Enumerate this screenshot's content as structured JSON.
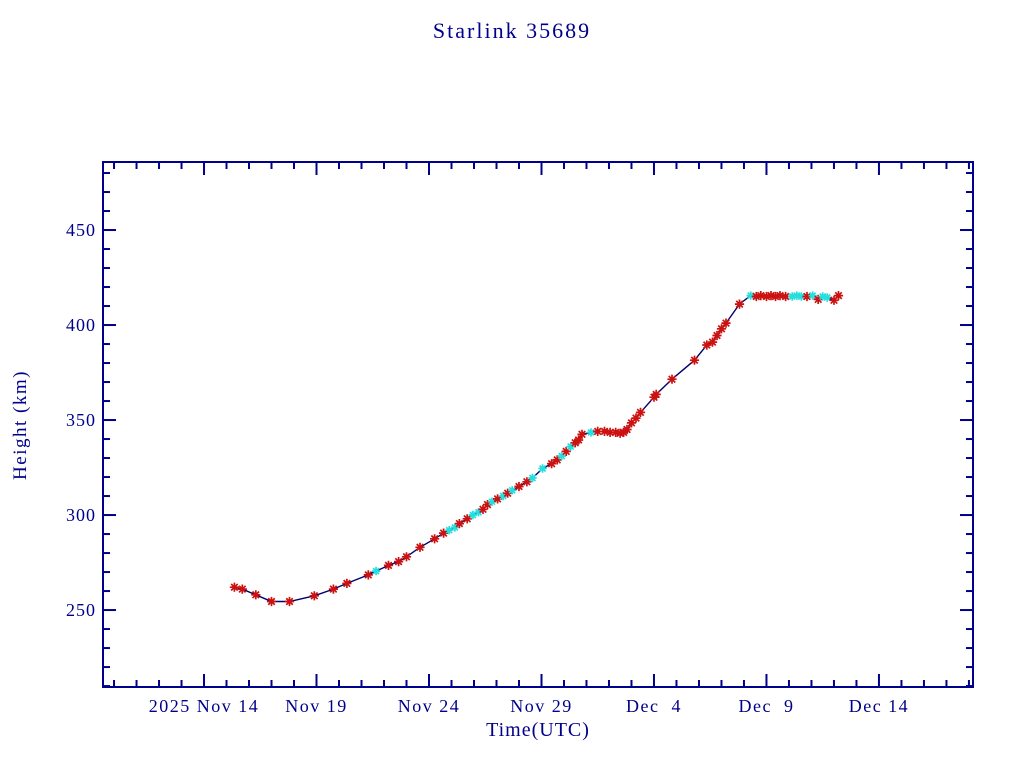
{
  "page": {
    "background_color": "#ffffff"
  },
  "chart_data": {
    "type": "line",
    "title": "Starlink 35689",
    "xlabel": "Time(UTC)",
    "ylabel": "Height (km)",
    "axis_color": "#00008b",
    "line_color": "#000070",
    "marker_colors": {
      "r": "#cc1111",
      "c": "#27dede"
    },
    "legend_position": "none",
    "grid": "off",
    "point_format": [
      "days_since_2025_Nov_14_00UTC",
      "height_km",
      "marker_color_key (r=red asterisk, c=cyan asterisk)"
    ],
    "x_range_days": [
      -4.49,
      34.18
    ],
    "y_range_km": [
      209.5,
      485.8
    ],
    "x_minor_step_days": 1,
    "y_minor_step_km": 10,
    "x_major_ticks": [
      {
        "day": 0,
        "label": "2025 Nov 14"
      },
      {
        "day": 5,
        "label": "Nov 19"
      },
      {
        "day": 10,
        "label": "Nov 24"
      },
      {
        "day": 15,
        "label": "Nov 29"
      },
      {
        "day": 20,
        "label": "Dec  4"
      },
      {
        "day": 25,
        "label": "Dec  9"
      },
      {
        "day": 30,
        "label": "Dec 14"
      }
    ],
    "y_major_ticks": [
      250,
      300,
      350,
      400,
      450
    ],
    "points": [
      [
        1.35,
        262,
        "r"
      ],
      [
        1.7,
        261,
        "r"
      ],
      [
        2.3,
        258,
        "r"
      ],
      [
        3.0,
        254.5,
        "r"
      ],
      [
        3.8,
        254.5,
        "r"
      ],
      [
        4.9,
        257.5,
        "r"
      ],
      [
        5.75,
        261,
        "r"
      ],
      [
        6.35,
        264,
        "r"
      ],
      [
        7.3,
        268.5,
        "r"
      ],
      [
        7.65,
        270.5,
        "c"
      ],
      [
        8.2,
        273.5,
        "r"
      ],
      [
        8.65,
        275.5,
        "r"
      ],
      [
        9.0,
        278,
        "r"
      ],
      [
        9.6,
        283,
        "r"
      ],
      [
        10.25,
        287.5,
        "r"
      ],
      [
        10.65,
        290.5,
        "r"
      ],
      [
        10.9,
        292,
        "c"
      ],
      [
        11.15,
        293.5,
        "c"
      ],
      [
        11.35,
        295.5,
        "r"
      ],
      [
        11.7,
        298,
        "r"
      ],
      [
        11.95,
        300,
        "c"
      ],
      [
        12.2,
        301.5,
        "c"
      ],
      [
        12.4,
        303,
        "r"
      ],
      [
        12.6,
        305.5,
        "r"
      ],
      [
        12.8,
        307,
        "c"
      ],
      [
        13.05,
        308.5,
        "r"
      ],
      [
        13.3,
        310,
        "c"
      ],
      [
        13.5,
        311.5,
        "r"
      ],
      [
        13.7,
        313,
        "c"
      ],
      [
        14.0,
        315,
        "r"
      ],
      [
        14.35,
        317.5,
        "r"
      ],
      [
        14.6,
        319.5,
        "c"
      ],
      [
        15.05,
        324.5,
        "c"
      ],
      [
        15.45,
        327,
        "r"
      ],
      [
        15.7,
        329,
        "r"
      ],
      [
        15.9,
        331,
        "c"
      ],
      [
        16.1,
        333.5,
        "r"
      ],
      [
        16.3,
        336,
        "c"
      ],
      [
        16.5,
        338,
        "r"
      ],
      [
        16.65,
        339.5,
        "r"
      ],
      [
        16.8,
        342.5,
        "r"
      ],
      [
        17.2,
        343.5,
        "c"
      ],
      [
        17.5,
        344,
        "r"
      ],
      [
        17.8,
        344,
        "r"
      ],
      [
        18.05,
        343.5,
        "r"
      ],
      [
        18.3,
        343.5,
        "r"
      ],
      [
        18.5,
        343,
        "r"
      ],
      [
        18.65,
        343.5,
        "r"
      ],
      [
        18.8,
        345,
        "r"
      ],
      [
        19.0,
        348.5,
        "r"
      ],
      [
        19.2,
        351,
        "r"
      ],
      [
        19.4,
        354,
        "r"
      ],
      [
        20.0,
        362,
        "r"
      ],
      [
        20.1,
        363.5,
        "r"
      ],
      [
        20.8,
        371.5,
        "r"
      ],
      [
        21.8,
        381.5,
        "r"
      ],
      [
        22.35,
        389.5,
        "r"
      ],
      [
        22.6,
        391,
        "r"
      ],
      [
        22.8,
        394.5,
        "r"
      ],
      [
        23.0,
        398,
        "r"
      ],
      [
        23.2,
        401,
        "r"
      ],
      [
        23.8,
        411,
        "r"
      ],
      [
        24.3,
        415.5,
        "c"
      ],
      [
        24.55,
        415,
        "r"
      ],
      [
        24.75,
        415.5,
        "r"
      ],
      [
        25.0,
        415,
        "r"
      ],
      [
        25.2,
        415.5,
        "r"
      ],
      [
        25.4,
        415,
        "r"
      ],
      [
        25.6,
        415.5,
        "r"
      ],
      [
        25.85,
        415,
        "r"
      ],
      [
        26.15,
        415,
        "c"
      ],
      [
        26.35,
        415.5,
        "c"
      ],
      [
        26.55,
        415,
        "c"
      ],
      [
        26.8,
        415,
        "r"
      ],
      [
        27.05,
        415.5,
        "c"
      ],
      [
        27.3,
        413.5,
        "r"
      ],
      [
        27.5,
        415,
        "c"
      ],
      [
        27.7,
        414.5,
        "c"
      ],
      [
        28.0,
        413,
        "r"
      ],
      [
        28.2,
        415.5,
        "r"
      ]
    ]
  }
}
